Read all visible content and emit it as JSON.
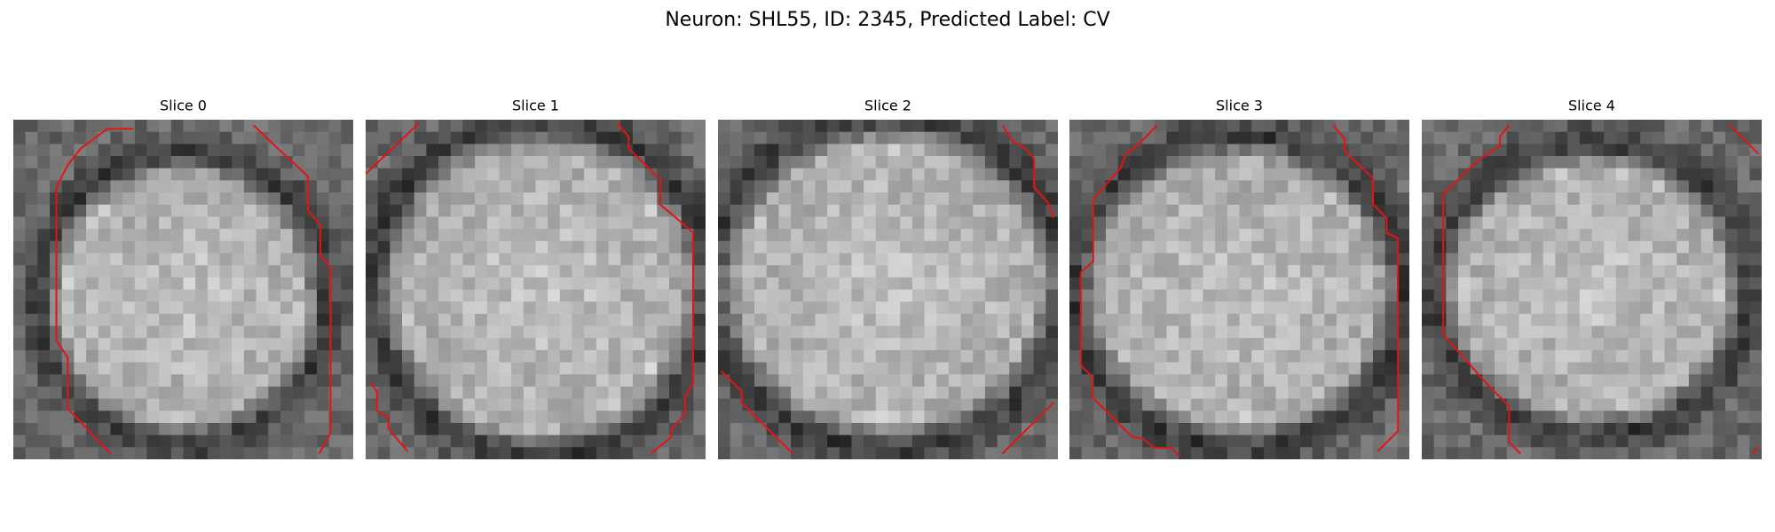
{
  "header": {
    "title": "Neuron: SHL55, ID: 2345, Predicted Label: CV"
  },
  "panels": [
    {
      "title": "Slice 0"
    },
    {
      "title": "Slice 1"
    },
    {
      "title": "Slice 2"
    },
    {
      "title": "Slice 3"
    },
    {
      "title": "Slice 4"
    }
  ]
}
